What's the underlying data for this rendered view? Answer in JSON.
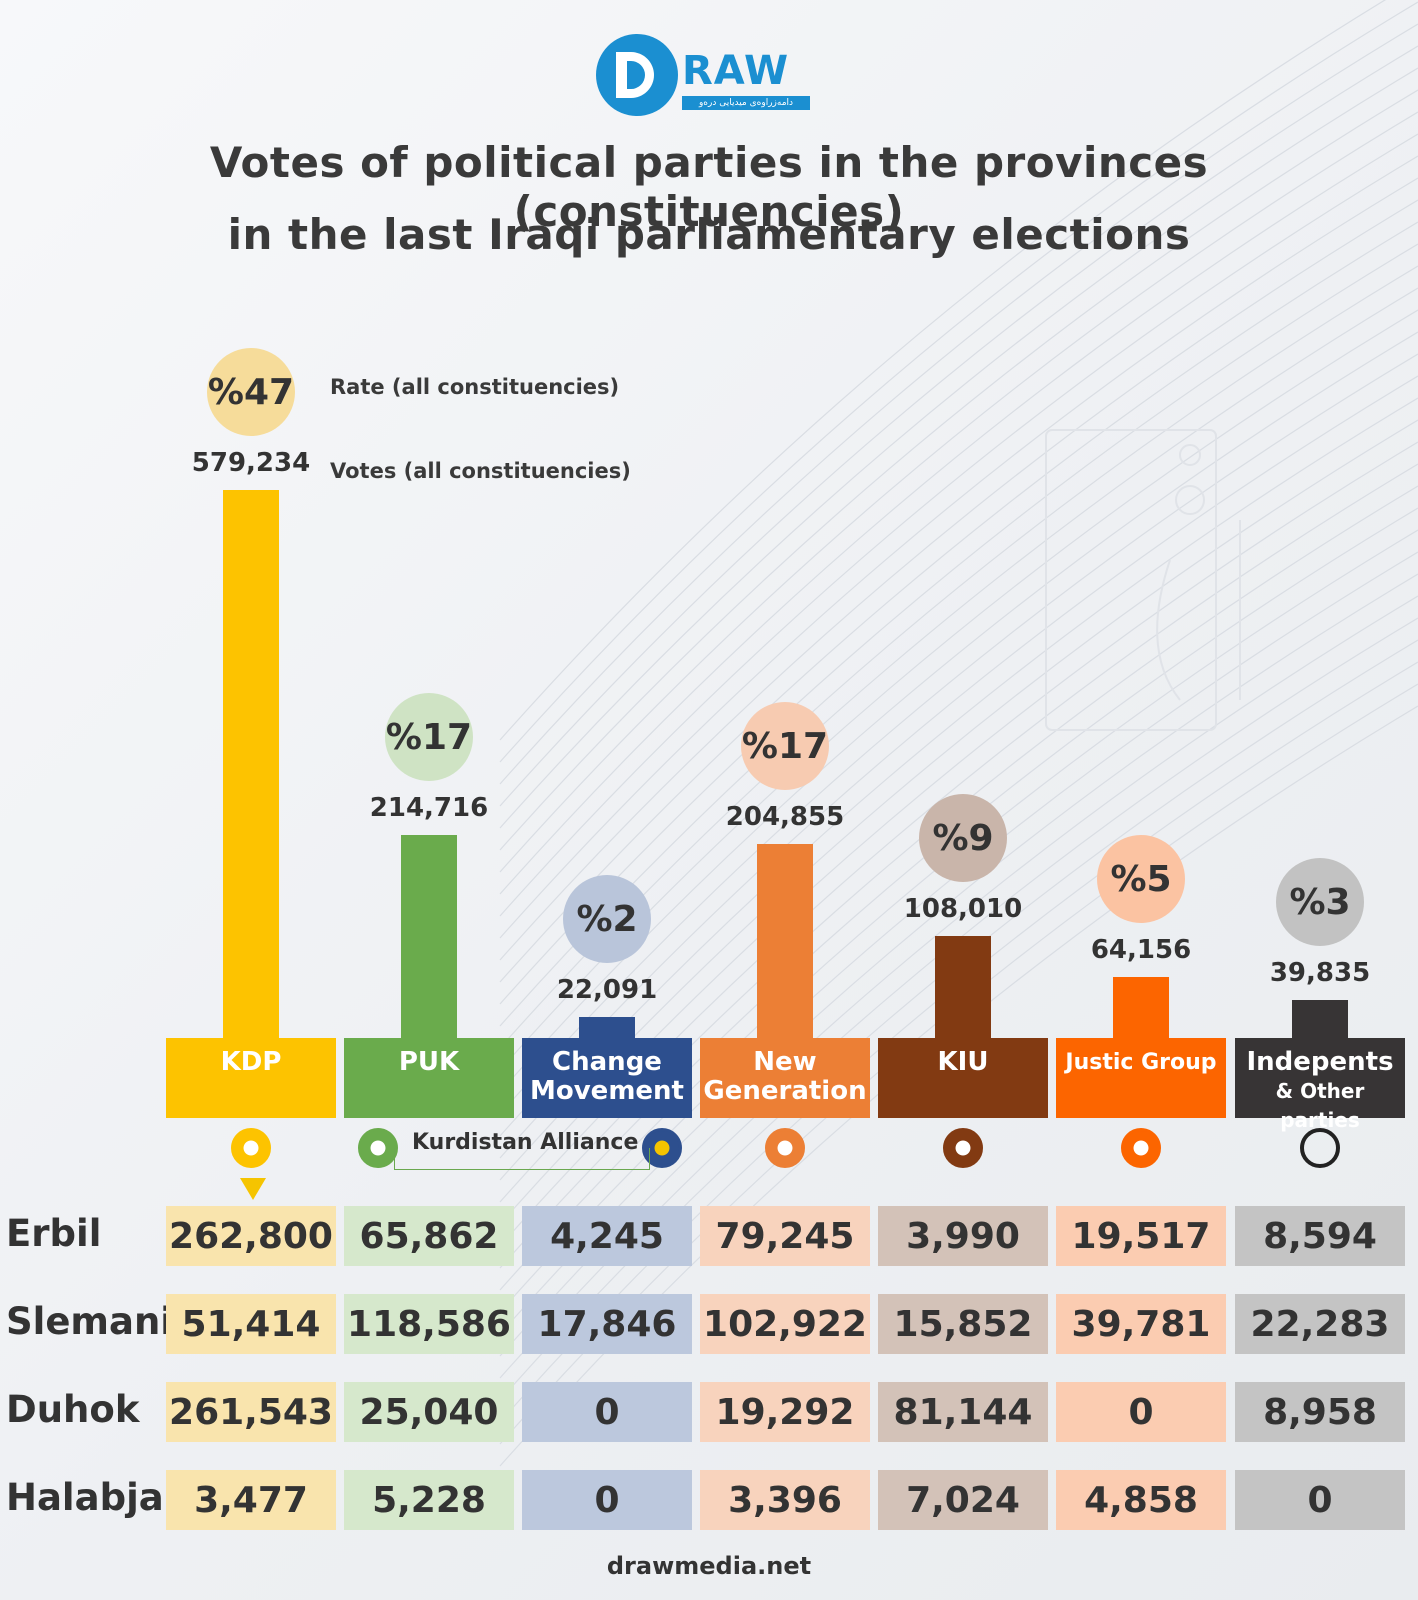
{
  "brand": {
    "logo_text": "RAW",
    "logo_tagline": "دامەزراوەی میدیایی درەو",
    "footer": "drawmedia.net"
  },
  "colors": {
    "KDP": "#fdc300",
    "PUK": "#6aab4c",
    "Change Movement": "#2d4f8e",
    "New Generation": "#ec7f35",
    "KIU": "#823a12",
    "Justic Group": "#fc6500",
    "Independents": "#373435"
  },
  "legend": {
    "rate_label": "Rate (all constituencies)",
    "votes_label": "Votes (all constituencies)"
  },
  "alliance_label": "Kurdistan Alliance",
  "chart_data": {
    "type": "bar",
    "title": "Votes of political parties in the provinces (constituencies)",
    "subtitle": "in the last Iraqi parliamentary elections",
    "categories": [
      "KDP",
      "PUK",
      "Change Movement",
      "New Generation",
      "KIU",
      "Justic Group",
      "Indepents & Other parties"
    ],
    "header_lines": [
      [
        "KDP"
      ],
      [
        "PUK"
      ],
      [
        "Change",
        "Movement"
      ],
      [
        "New",
        "Generation"
      ],
      [
        "KIU"
      ],
      [
        "Justic Group"
      ],
      [
        "Indepents",
        "& Other parties"
      ]
    ],
    "values": [
      579234,
      214716,
      22091,
      204855,
      108010,
      64156,
      39835
    ],
    "value_labels": [
      "579,234",
      "214,716",
      "22,091",
      "204,855",
      "108,010",
      "64,156",
      "39,835"
    ],
    "rates": [
      "%47",
      "%17",
      "%2",
      "%17",
      "%9",
      "%5",
      "%3"
    ],
    "ylim": [
      0,
      579234
    ],
    "grid": false,
    "table": {
      "rows": [
        "Erbil",
        "Slemani",
        "Duhok",
        "Halabja"
      ],
      "values": [
        [
          "262,800",
          "65,862",
          "4,245",
          "79,245",
          "3,990",
          "19,517",
          "8,594"
        ],
        [
          "51,414",
          "118,586",
          "17,846",
          "102,922",
          "15,852",
          "39,781",
          "22,283"
        ],
        [
          "261,543",
          "25,040",
          "0",
          "19,292",
          "81,144",
          "0",
          "8,958"
        ],
        [
          "3,477",
          "5,228",
          "0",
          "3,396",
          "7,024",
          "4,858",
          "0"
        ]
      ]
    }
  }
}
